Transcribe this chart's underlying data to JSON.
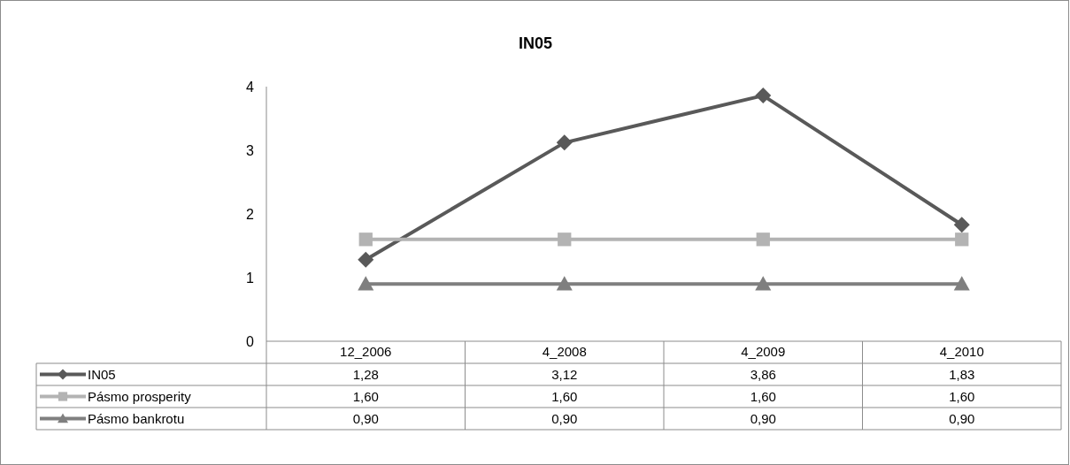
{
  "chart_data": {
    "type": "line",
    "title": "IN05",
    "categories": [
      "12_2006",
      "4_2008",
      "4_2009",
      "4_2010"
    ],
    "series": [
      {
        "name": "IN05",
        "color": "#595959",
        "marker": "diamond",
        "values": [
          1.28,
          3.12,
          3.86,
          1.83
        ],
        "value_labels": [
          "1,28",
          "3,12",
          "3,86",
          "1,83"
        ]
      },
      {
        "name": "Pásmo prosperity",
        "color": "#b3b3b3",
        "marker": "square",
        "values": [
          1.6,
          1.6,
          1.6,
          1.6
        ],
        "value_labels": [
          "1,60",
          "1,60",
          "1,60",
          "1,60"
        ]
      },
      {
        "name": "Pásmo bankrotu",
        "color": "#7f7f7f",
        "marker": "triangle",
        "values": [
          0.9,
          0.9,
          0.9,
          0.9
        ],
        "value_labels": [
          "0,90",
          "0,90",
          "0,90",
          "0,90"
        ]
      }
    ],
    "ylim": [
      0,
      4
    ],
    "yticks": [
      0,
      1,
      2,
      3,
      4
    ],
    "legend": "bottom",
    "line_style": "solid"
  }
}
